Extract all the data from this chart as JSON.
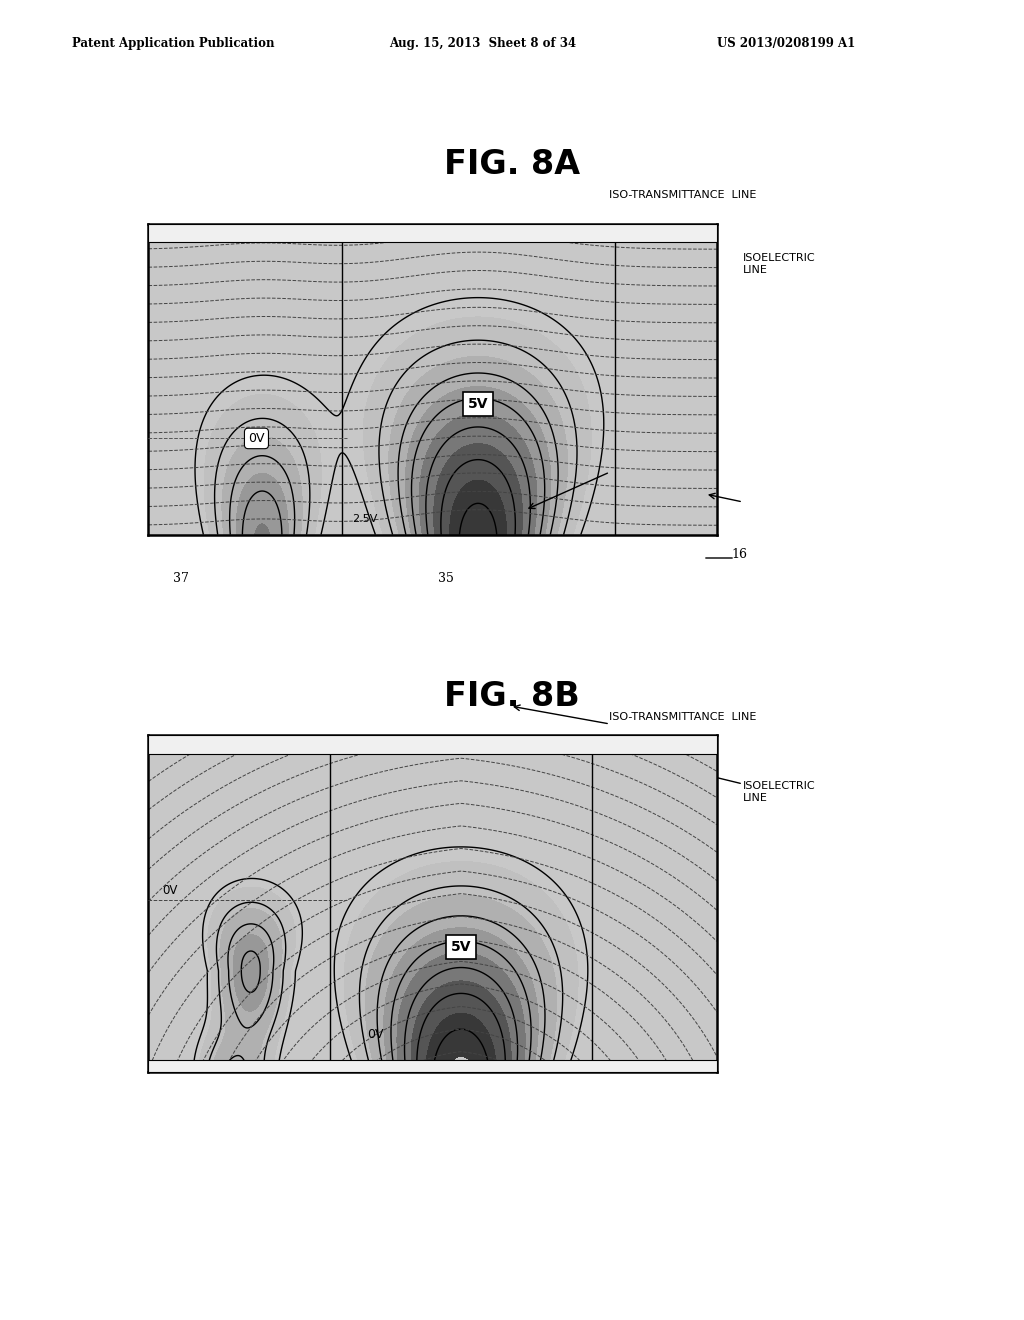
{
  "title_8a": "FIG. 8A",
  "title_8b": "FIG. 8B",
  "header_left": "Patent Application Publication",
  "header_center": "Aug. 15, 2013  Sheet 8 of 34",
  "header_right": "US 2013/0208199 A1",
  "label_iso_trans": "ISO-TRANSMITTANCE  LINE",
  "label_isoelectric": "ISOELECTRIC\nLINE",
  "label_0v_8a": "0V",
  "label_5v_8a": "5V",
  "label_2_5v_8a": "2.5V",
  "label_37": "37",
  "label_35": "35",
  "label_16": "16",
  "label_0v_8b": "0V",
  "label_5v_8b": "5V",
  "label_0v2_8b": "0V",
  "bg_color": "#ffffff"
}
